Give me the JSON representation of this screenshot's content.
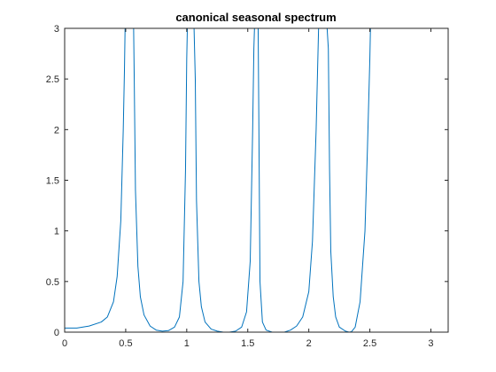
{
  "chart_data": {
    "type": "line",
    "title": "canonical seasonal spectrum",
    "xlabel": "",
    "ylabel": "",
    "xlim": [
      0,
      3.14159
    ],
    "ylim": [
      0,
      3
    ],
    "x_ticks": [
      0,
      0.5,
      1,
      1.5,
      2,
      2.5,
      3
    ],
    "x_tick_labels": [
      "0",
      "0.5",
      "1",
      "1.5",
      "2",
      "2.5",
      "3"
    ],
    "y_ticks": [
      0,
      0.5,
      1,
      1.5,
      2,
      2.5,
      3
    ],
    "y_tick_labels": [
      "0",
      "0.5",
      "1",
      "1.5",
      "2",
      "2.5",
      "3"
    ],
    "grid": false,
    "line_color": "#0072BD",
    "series": [
      {
        "x": [
          0,
          0.1,
          0.2,
          0.3,
          0.35,
          0.4,
          0.43,
          0.46,
          0.48,
          0.49,
          0.495,
          0.5,
          0.52,
          0.54,
          0.56,
          0.565,
          0.57,
          0.58,
          0.6,
          0.62,
          0.65,
          0.7,
          0.75,
          0.8,
          0.85,
          0.9,
          0.94,
          0.97,
          0.99,
          1.0,
          1.005,
          1.01,
          1.03,
          1.05,
          1.06,
          1.07,
          1.08,
          1.1,
          1.12,
          1.15,
          1.2,
          1.25,
          1.3,
          1.35,
          1.4,
          1.45,
          1.49,
          1.52,
          1.54,
          1.55,
          1.555,
          1.56,
          1.57,
          1.58,
          1.585,
          1.59,
          1.6,
          1.62,
          1.65,
          1.7,
          1.75,
          1.8,
          1.85,
          1.9,
          1.95,
          2.0,
          2.03,
          2.06,
          2.08,
          2.09,
          2.095,
          2.1,
          2.12,
          2.14,
          2.15,
          2.16,
          2.17,
          2.18,
          2.2,
          2.22,
          2.25,
          2.3,
          2.33,
          2.35,
          2.38,
          2.42,
          2.46,
          2.48,
          2.5,
          2.505,
          2.51
        ],
        "y": [
          0.04,
          0.04,
          0.06,
          0.1,
          0.15,
          0.3,
          0.55,
          1.1,
          2.0,
          2.6,
          3.0,
          3.0,
          3.0,
          3.0,
          3.0,
          3.0,
          2.5,
          1.4,
          0.65,
          0.35,
          0.17,
          0.06,
          0.02,
          0.01,
          0.015,
          0.05,
          0.15,
          0.5,
          1.6,
          2.7,
          3.0,
          3.0,
          3.0,
          3.0,
          3.0,
          2.5,
          1.3,
          0.5,
          0.25,
          0.1,
          0.03,
          0.01,
          0.0,
          0.0,
          0.01,
          0.05,
          0.2,
          0.7,
          2.0,
          2.8,
          3.0,
          3.0,
          3.0,
          3.0,
          3.0,
          2.2,
          0.5,
          0.1,
          0.02,
          0.0,
          0.0,
          0.0,
          0.02,
          0.06,
          0.15,
          0.4,
          0.9,
          2.0,
          3.0,
          3.0,
          3.0,
          3.0,
          3.0,
          3.0,
          3.0,
          2.8,
          1.6,
          0.8,
          0.35,
          0.15,
          0.05,
          0.01,
          0.0,
          0.005,
          0.05,
          0.3,
          1.0,
          1.8,
          2.7,
          3.0,
          3.0
        ]
      }
    ]
  }
}
